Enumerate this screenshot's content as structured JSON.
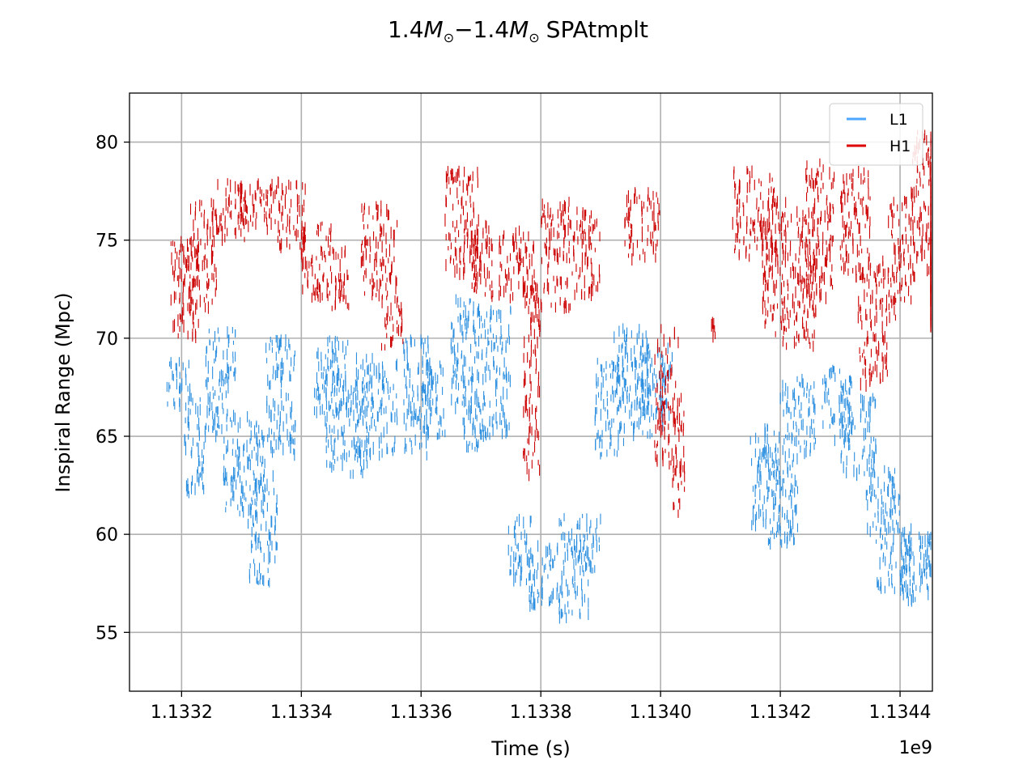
{
  "chart_data": {
    "type": "scatter",
    "title_prefix": "1.4",
    "title_mid": "−1.4",
    "title_sym": "M",
    "title_sub": "⊙",
    "title_suffix": "SPAtmplt",
    "xlabel": "Time (s)",
    "ylabel": "Inspiral Range (Mpc)",
    "x_offset_label": "1e9",
    "xlim": [
      1133113000,
      1134454000
    ],
    "ylim": [
      52,
      82.5
    ],
    "x_ticks": [
      1133200000,
      1133400000,
      1133600000,
      1133800000,
      1134000000,
      1134200000,
      1134400000
    ],
    "x_tick_labels": [
      "1.1332",
      "1.1334",
      "1.1336",
      "1.1338",
      "1.1340",
      "1.1342",
      "1.1344"
    ],
    "y_ticks": [
      55,
      60,
      65,
      70,
      75,
      80
    ],
    "y_tick_labels": [
      "55",
      "60",
      "65",
      "70",
      "75",
      "80"
    ],
    "grid": true,
    "legend_position": "top-right",
    "series": [
      {
        "name": "L1",
        "color": "#2b8fe0",
        "legend_color": "#4da6ff",
        "clusters": [
          {
            "x": [
              1133175000,
              1133215000
            ],
            "y": [
              66.5,
              69
            ]
          },
          {
            "x": [
              1133205000,
              1133240000
            ],
            "y": [
              62,
              67
            ]
          },
          {
            "x": [
              1133240000,
              1133290000
            ],
            "y": [
              65,
              70.5
            ]
          },
          {
            "x": [
              1133270000,
              1133340000
            ],
            "y": [
              61,
              66
            ]
          },
          {
            "x": [
              1133310000,
              1133360000
            ],
            "y": [
              57.5,
              63
            ]
          },
          {
            "x": [
              1133340000,
              1133390000
            ],
            "y": [
              64,
              70
            ]
          },
          {
            "x": [
              1133420000,
              1133480000
            ],
            "y": [
              66,
              70
            ]
          },
          {
            "x": [
              1133440000,
              1133510000
            ],
            "y": [
              63,
              68
            ]
          },
          {
            "x": [
              1133490000,
              1133560000
            ],
            "y": [
              64,
              69
            ]
          },
          {
            "x": [
              1133570000,
              1133620000
            ],
            "y": [
              64,
              70
            ]
          },
          {
            "x": [
              1133600000,
              1133640000
            ],
            "y": [
              65,
              69
            ]
          },
          {
            "x": [
              1133650000,
              1133690000
            ],
            "y": [
              66,
              72
            ]
          },
          {
            "x": [
              1133670000,
              1133700000
            ],
            "y": [
              64,
              68
            ]
          },
          {
            "x": [
              1133690000,
              1133750000
            ],
            "y": [
              65,
              71.5
            ]
          },
          {
            "x": [
              1133745000,
              1133790000
            ],
            "y": [
              57.5,
              60.8
            ]
          },
          {
            "x": [
              1133780000,
              1133830000
            ],
            "y": [
              56.2,
              59.5
            ]
          },
          {
            "x": [
              1133830000,
              1133880000
            ],
            "y": [
              55.7,
              61
            ]
          },
          {
            "x": [
              1133870000,
              1133900000
            ],
            "y": [
              58,
              60.8
            ]
          },
          {
            "x": [
              1133890000,
              1133940000
            ],
            "y": [
              64,
              69
            ]
          },
          {
            "x": [
              1133920000,
              1133980000
            ],
            "y": [
              66,
              70.5
            ]
          },
          {
            "x": [
              1133950000,
              1134010000
            ],
            "y": [
              65,
              69.5
            ]
          },
          {
            "x": [
              1134000000,
              1134020000
            ],
            "y": [
              66,
              69.5
            ]
          },
          {
            "x": [
              1134150000,
              1134200000
            ],
            "y": [
              60,
              65.5
            ]
          },
          {
            "x": [
              1134180000,
              1134230000
            ],
            "y": [
              59.5,
              64
            ]
          },
          {
            "x": [
              1134200000,
              1134260000
            ],
            "y": [
              64,
              68
            ]
          },
          {
            "x": [
              1134270000,
              1134320000
            ],
            "y": [
              64.5,
              68.5
            ]
          },
          {
            "x": [
              1134300000,
              1134360000
            ],
            "y": [
              63,
              67
            ]
          },
          {
            "x": [
              1134340000,
              1134400000
            ],
            "y": [
              60,
              63.5
            ]
          },
          {
            "x": [
              1134360000,
              1134420000
            ],
            "y": [
              57,
              60.5
            ]
          },
          {
            "x": [
              1134400000,
              1134450000
            ],
            "y": [
              56.5,
              60
            ]
          },
          {
            "x": [
              1134430000,
              1134460000
            ],
            "y": [
              58,
              60
            ]
          }
        ]
      },
      {
        "name": "H1",
        "color": "#cc0000",
        "legend_color": "#dd0000",
        "clusters": [
          {
            "x": [
              1133180000,
              1133230000
            ],
            "y": [
              70,
              75
            ]
          },
          {
            "x": [
              1133210000,
              1133260000
            ],
            "y": [
              71.5,
              77
            ]
          },
          {
            "x": [
              1133260000,
              1133310000
            ],
            "y": [
              75,
              78
            ]
          },
          {
            "x": [
              1133290000,
              1133360000
            ],
            "y": [
              75.5,
              78
            ]
          },
          {
            "x": [
              1133360000,
              1133410000
            ],
            "y": [
              74.5,
              78
            ]
          },
          {
            "x": [
              1133400000,
              1133450000
            ],
            "y": [
              72,
              76
            ]
          },
          {
            "x": [
              1133440000,
              1133480000
            ],
            "y": [
              71.5,
              74.5
            ]
          },
          {
            "x": [
              1133500000,
              1133560000
            ],
            "y": [
              72,
              76.8
            ]
          },
          {
            "x": [
              1133530000,
              1133570000
            ],
            "y": [
              69.5,
              72
            ]
          },
          {
            "x": [
              1133640000,
              1133700000
            ],
            "y": [
              73,
              78.6
            ]
          },
          {
            "x": [
              1133680000,
              1133720000
            ],
            "y": [
              72,
              76
            ]
          },
          {
            "x": [
              1133730000,
              1133790000
            ],
            "y": [
              72,
              75.5
            ]
          },
          {
            "x": [
              1133770000,
              1133800000
            ],
            "y": [
              63,
              73
            ]
          },
          {
            "x": [
              1133800000,
              1133850000
            ],
            "y": [
              71.5,
              77
            ]
          },
          {
            "x": [
              1133850000,
              1133900000
            ],
            "y": [
              72,
              76.5
            ]
          },
          {
            "x": [
              1133940000,
              1134000000
            ],
            "y": [
              74,
              77.5
            ]
          },
          {
            "x": [
              1133990000,
              1134030000
            ],
            "y": [
              63.5,
              70.5
            ]
          },
          {
            "x": [
              1134020000,
              1134040000
            ],
            "y": [
              61,
              67
            ]
          },
          {
            "x": [
              1134080000,
              1134100000
            ],
            "y": [
              70,
              71
            ]
          },
          {
            "x": [
              1134120000,
              1134190000
            ],
            "y": [
              74,
              78.6
            ]
          },
          {
            "x": [
              1134170000,
              1134210000
            ],
            "y": [
              70,
              77
            ]
          },
          {
            "x": [
              1134200000,
              1134260000
            ],
            "y": [
              69.5,
              76.5
            ]
          },
          {
            "x": [
              1134240000,
              1134290000
            ],
            "y": [
              72,
              79
            ]
          },
          {
            "x": [
              1134300000,
              1134350000
            ],
            "y": [
              73,
              78.5
            ]
          },
          {
            "x": [
              1134330000,
              1134380000
            ],
            "y": [
              67.5,
              74
            ]
          },
          {
            "x": [
              1134380000,
              1134420000
            ],
            "y": [
              71,
              77.5
            ]
          },
          {
            "x": [
              1134420000,
              1134470000
            ],
            "y": [
              73,
              80.5
            ]
          },
          {
            "x": [
              1134460000,
              1134510000
            ],
            "y": [
              71,
              78
            ]
          },
          {
            "x": [
              1134500000,
              1134545000
            ],
            "y": [
              70.5,
              76
            ]
          },
          {
            "x": [
              1134520000,
              1134545000
            ],
            "y": [
              72,
              75
            ]
          }
        ]
      }
    ]
  }
}
